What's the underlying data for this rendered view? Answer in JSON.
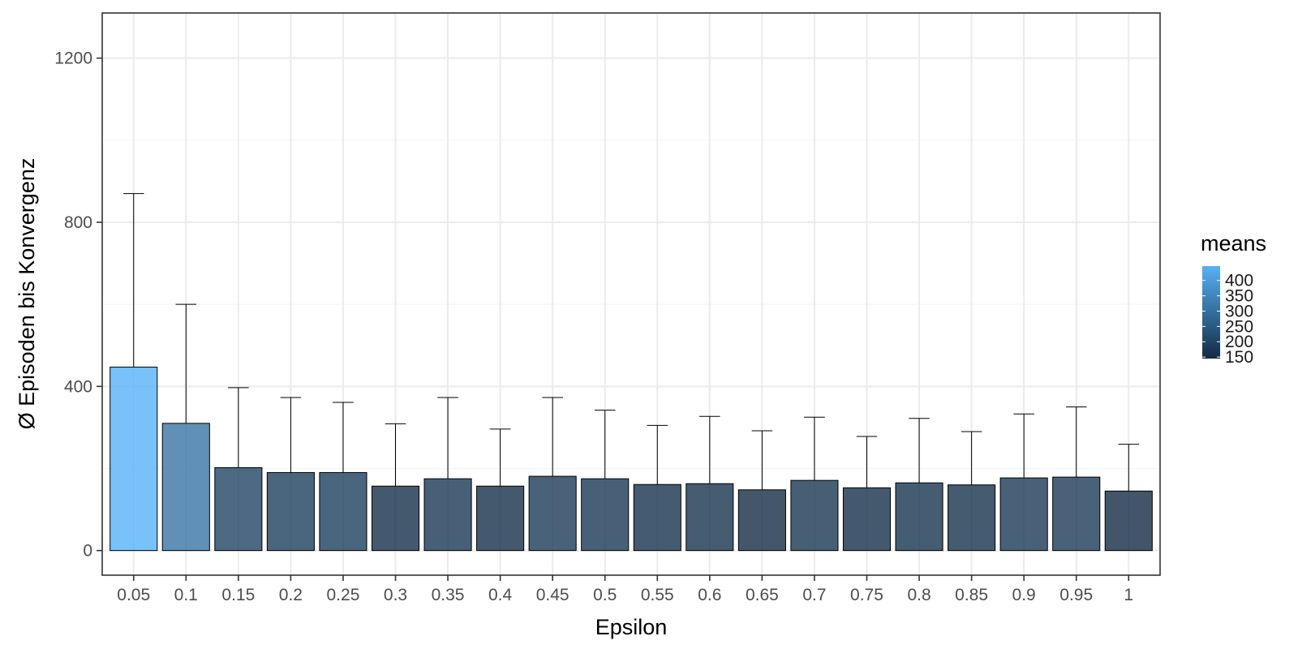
{
  "chart_data": {
    "type": "bar",
    "title": "",
    "xlabel": "Epsilon",
    "ylabel": "Ø Episoden bis Konvergenz",
    "categories": [
      "0.05",
      "0.1",
      "0.15",
      "0.2",
      "0.25",
      "0.3",
      "0.35",
      "0.4",
      "0.45",
      "0.5",
      "0.55",
      "0.6",
      "0.65",
      "0.7",
      "0.75",
      "0.8",
      "0.85",
      "0.9",
      "0.95",
      "1"
    ],
    "values": [
      447,
      310,
      202,
      190,
      190,
      157,
      175,
      157,
      181,
      175,
      161,
      163,
      148,
      171,
      153,
      165,
      160,
      177,
      179,
      145
    ],
    "error_upper": [
      870,
      600,
      397,
      373,
      361,
      309,
      373,
      296,
      373,
      342,
      305,
      327,
      292,
      325,
      278,
      322,
      290,
      333,
      350,
      259
    ],
    "ylim": [
      -60,
      1310
    ],
    "yticks": [
      0,
      400,
      800,
      1200
    ],
    "grid": true,
    "legend": {
      "title": "means",
      "position": "right",
      "range": [
        145,
        447
      ],
      "ticks": [
        150,
        200,
        250,
        300,
        350,
        400
      ],
      "color_low": "#132b43",
      "color_high": "#56b1f7"
    },
    "bar_opacity": 0.8,
    "colors": {
      "panel_border": "#333333",
      "grid_major": "#ebebeb",
      "grid_minor": "#f5f5f5",
      "bar_outline": "#000000",
      "errorbar": "#000000"
    }
  }
}
